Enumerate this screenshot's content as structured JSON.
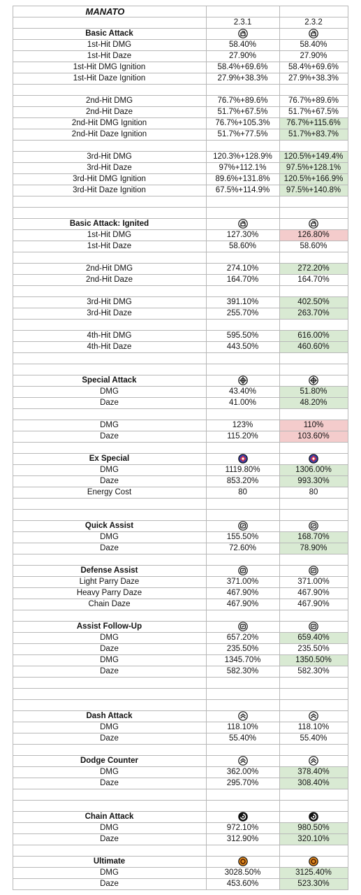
{
  "header": {
    "title": "MANATO",
    "versions": [
      "2.3.1",
      "2.3.2"
    ]
  },
  "sections": [
    {
      "title": "Basic Attack",
      "groups": [
        [
          {
            "label": "1st-Hit DMG",
            "values": [
              "58.40%",
              "58.40%"
            ]
          },
          {
            "label": "1st-Hit Daze",
            "values": [
              "27.90%",
              "27.90%"
            ]
          },
          {
            "label": "1st-Hit DMG Ignition",
            "values": [
              "58.4%+69.6%",
              "58.4%+69.6%"
            ]
          },
          {
            "label": "1st-Hit Daze Ignition",
            "values": [
              "27.9%+38.3%",
              "27.9%+38.3%"
            ]
          }
        ],
        [
          {
            "label": "2nd-Hit DMG",
            "values": [
              "76.7%+89.6%",
              "76.7%+89.6%"
            ]
          },
          {
            "label": "2nd-Hit Daze",
            "values": [
              "51.7%+67.5%",
              "51.7%+67.5%"
            ]
          },
          {
            "label": "2nd-Hit DMG Ignition",
            "values": [
              "76.7%+105.3%",
              "76.7%+115.6%"
            ],
            "color": "#d9ead3"
          },
          {
            "label": "2nd-Hit Daze Ignition",
            "values": [
              "51.7%+77.5%",
              "51.7%+83.7%"
            ],
            "color": "#d9ead3"
          }
        ],
        [
          {
            "label": "3rd-Hit DMG",
            "values": [
              "120.3%+128.9%",
              "120.5%+149.4%"
            ],
            "color": "#d9ead3"
          },
          {
            "label": "3rd-Hit Daze",
            "values": [
              "97%+112.1%",
              "97.5%+128.1%"
            ],
            "color": "#d9ead3"
          },
          {
            "label": "3rd-Hit DMG Ignition",
            "values": [
              "89.6%+131.8%",
              "120.5%+166.9%"
            ],
            "color": "#d9ead3"
          },
          {
            "label": "3rd-Hit Daze Ignition",
            "values": [
              "67.5%+114.9%",
              "97.5%+140.8%"
            ],
            "color": "#d9ead3"
          }
        ]
      ]
    },
    {
      "title": "Basic Attack: Ignited",
      "groups": [
        [
          {
            "label": "1st-Hit DMG",
            "values": [
              "127.30%",
              "126.80%"
            ],
            "color": "#f4cccc"
          },
          {
            "label": "1st-Hit Daze",
            "values": [
              "58.60%",
              "58.60%"
            ]
          }
        ],
        [
          {
            "label": "2nd-Hit DMG",
            "values": [
              "274.10%",
              "272.20%"
            ],
            "color": "#d9ead3"
          },
          {
            "label": "2nd-Hit Daze",
            "values": [
              "164.70%",
              "164.70%"
            ]
          }
        ],
        [
          {
            "label": "3rd-Hit DMG",
            "values": [
              "391.10%",
              "402.50%"
            ],
            "color": "#d9ead3"
          },
          {
            "label": "3rd-Hit Daze",
            "values": [
              "255.70%",
              "263.70%"
            ],
            "color": "#d9ead3"
          }
        ],
        [
          {
            "label": "4th-Hit DMG",
            "values": [
              "595.50%",
              "616.00%"
            ],
            "color": "#d9ead3"
          },
          {
            "label": "4th-Hit Daze",
            "values": [
              "443.50%",
              "460.60%"
            ],
            "color": "#d9ead3"
          }
        ]
      ]
    },
    {
      "title": "Special Attack",
      "groups": [
        [
          {
            "label": "DMG",
            "values": [
              "43.40%",
              "51.80%"
            ],
            "color": "#d9ead3"
          },
          {
            "label": "Daze",
            "values": [
              "41.00%",
              "48.20%"
            ],
            "color": "#d9ead3"
          }
        ],
        [
          {
            "label": "DMG",
            "values": [
              "123%",
              "110%"
            ],
            "color": "#f4cccc"
          },
          {
            "label": "Daze",
            "values": [
              "115.20%",
              "103.60%"
            ],
            "color": "#f4cccc"
          }
        ]
      ]
    },
    {
      "title": "Ex Special",
      "groups": [
        [
          {
            "label": "DMG",
            "values": [
              "1119.80%",
              "1306.00%"
            ],
            "color": "#d9ead3"
          },
          {
            "label": "Daze",
            "values": [
              "853.20%",
              "993.30%"
            ],
            "color": "#d9ead3"
          },
          {
            "label": "Energy Cost",
            "values": [
              "80",
              "80"
            ]
          }
        ]
      ]
    },
    {
      "title": "Quick Assist",
      "groups": [
        [
          {
            "label": "DMG",
            "values": [
              "155.50%",
              "168.70%"
            ],
            "color": "#d9ead3"
          },
          {
            "label": "Daze",
            "values": [
              "72.60%",
              "78.90%"
            ],
            "color": "#d9ead3"
          }
        ]
      ]
    },
    {
      "title": "Defense Assist",
      "groups": [
        [
          {
            "label": "Light Parry Daze",
            "values": [
              "371.00%",
              "371.00%"
            ]
          },
          {
            "label": "Heavy Parry Daze",
            "values": [
              "467.90%",
              "467.90%"
            ]
          },
          {
            "label": "Chain Daze",
            "values": [
              "467.90%",
              "467.90%"
            ]
          }
        ]
      ]
    },
    {
      "title": "Assist Follow-Up",
      "groups": [
        [
          {
            "label": "DMG",
            "values": [
              "657.20%",
              "659.40%"
            ],
            "color": "#d9ead3"
          },
          {
            "label": "Daze",
            "values": [
              "235.50%",
              "235.50%"
            ]
          },
          {
            "label": "DMG",
            "values": [
              "1345.70%",
              "1350.50%"
            ],
            "color": "#d9ead3"
          },
          {
            "label": "Daze",
            "values": [
              "582.30%",
              "582.30%"
            ]
          }
        ]
      ]
    },
    {
      "title": "Dash Attack",
      "groups": [
        [
          {
            "label": "DMG",
            "values": [
              "118.10%",
              "118.10%"
            ]
          },
          {
            "label": "Daze",
            "values": [
              "55.40%",
              "55.40%"
            ]
          }
        ]
      ]
    },
    {
      "title": "Dodge Counter",
      "groups": [
        [
          {
            "label": "DMG",
            "values": [
              "362.00%",
              "378.40%"
            ],
            "color": "#d9ead3"
          },
          {
            "label": "Daze",
            "values": [
              "295.70%",
              "308.40%"
            ],
            "color": "#d9ead3"
          }
        ]
      ]
    },
    {
      "title": "Chain Attack",
      "groups": [
        [
          {
            "label": "DMG",
            "values": [
              "972.10%",
              "980.50%"
            ],
            "color": "#d9ead3"
          },
          {
            "label": "Daze",
            "values": [
              "312.90%",
              "320.10%"
            ],
            "color": "#d9ead3"
          }
        ]
      ]
    },
    {
      "title": "Ultimate",
      "groups": [
        [
          {
            "label": "DMG",
            "values": [
              "3028.50%",
              "3125.40%"
            ],
            "color": "#d9ead3"
          },
          {
            "label": "Daze",
            "values": [
              "453.60%",
              "523.30%"
            ],
            "color": "#d9ead3"
          }
        ]
      ]
    }
  ]
}
